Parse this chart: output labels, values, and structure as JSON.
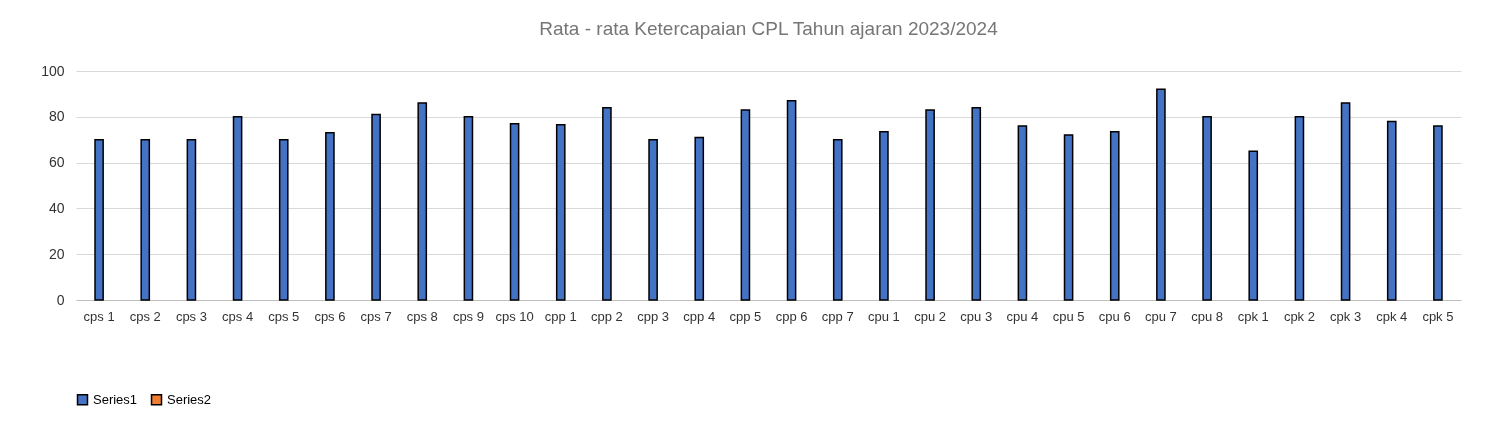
{
  "chart_data": {
    "type": "bar",
    "title": "Rata - rata Ketercapaian CPL Tahun ajaran 2023/2024",
    "categories": [
      "cps 1",
      "cps 2",
      "cps 3",
      "cps 4",
      "cps 5",
      "cps 6",
      "cps 7",
      "cps 8",
      "cps 9",
      "cps 10",
      "cpp 1",
      "cpp 2",
      "cpp 3",
      "cpp 4",
      "cpp 5",
      "cpp 6",
      "cpp 7",
      "cpu 1",
      "cpu 2",
      "cpu 3",
      "cpu 4",
      "cpu 5",
      "cpu 6",
      "cpu 7",
      "cpu 8",
      "cpk 1",
      "cpk 2",
      "cpk 3",
      "cpk 4",
      "cpk 5"
    ],
    "series": [
      {
        "name": "Series1",
        "color": "#4472c4",
        "values": [
          70,
          70,
          70,
          80,
          70,
          73,
          81,
          86,
          80,
          77,
          76.5,
          84,
          70,
          71,
          83,
          87,
          70,
          73.5,
          83,
          84,
          76,
          72,
          73.5,
          92,
          80,
          65,
          80,
          86,
          78,
          76
        ]
      },
      {
        "name": "Series2",
        "color": "#ed7d31",
        "values": [
          null,
          null,
          null,
          null,
          null,
          null,
          null,
          null,
          null,
          null,
          null,
          null,
          null,
          null,
          null,
          null,
          null,
          null,
          null,
          null,
          null,
          null,
          null,
          null,
          null,
          null,
          null,
          null,
          null,
          null
        ]
      }
    ],
    "ylim": [
      0,
      100
    ],
    "yticks": [
      0,
      20,
      40,
      60,
      80,
      100
    ],
    "grid": "y",
    "legend": "bottom"
  }
}
